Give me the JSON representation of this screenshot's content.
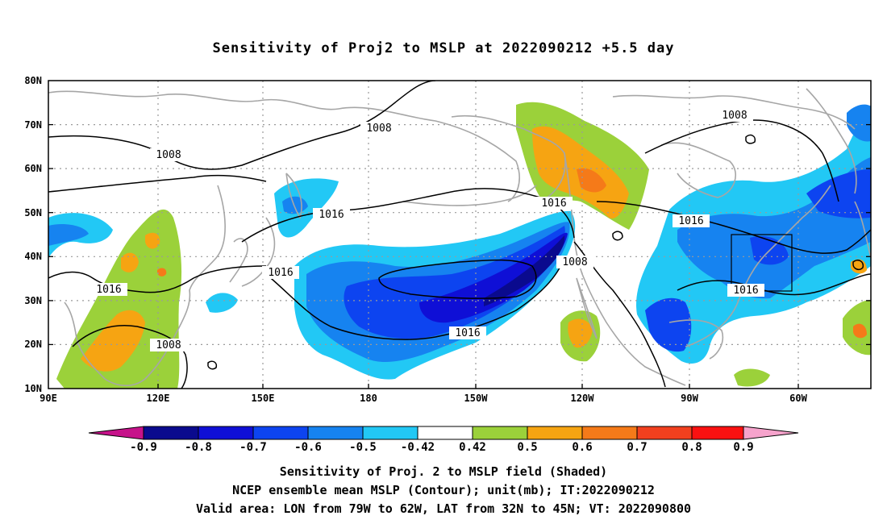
{
  "title": "Sensitivity of Proj2 to MSLP at 2022090212 +5.5 day",
  "map": {
    "lat_labels": [
      "80N",
      "70N",
      "60N",
      "50N",
      "40N",
      "30N",
      "20N",
      "10N"
    ],
    "lon_labels": [
      "90E",
      "120E",
      "150E",
      "180",
      "150W",
      "120W",
      "90W",
      "60W"
    ],
    "isobar_values": [
      "1008",
      "1008",
      "1016",
      "1016",
      "1016",
      "1016",
      "1008",
      "1016",
      "1008",
      "1008",
      "1016"
    ],
    "valid_box": {
      "lon_from": "79W",
      "lon_to": "62W",
      "lat_from": "32N",
      "lat_to": "45N"
    },
    "colors": {
      "coast": "#a6a6a6",
      "isobar": "#000000",
      "grid": "#9a9a9a"
    }
  },
  "colorbar": {
    "labels": [
      "-0.9",
      "-0.8",
      "-0.7",
      "-0.6",
      "-0.5",
      "-0.42",
      "0.42",
      "0.5",
      "0.6",
      "0.7",
      "0.8",
      "0.9"
    ],
    "bins": [
      {
        "range": "< -0.9",
        "color": "#c6128a"
      },
      {
        "range": "-0.9 to -0.8",
        "color": "#0a0a8e"
      },
      {
        "range": "-0.8 to -0.7",
        "color": "#0f0fd6"
      },
      {
        "range": "-0.7 to -0.6",
        "color": "#0d44f0"
      },
      {
        "range": "-0.6 to -0.5",
        "color": "#1683f0"
      },
      {
        "range": "-0.5 to -0.42",
        "color": "#22c8f5"
      },
      {
        "range": "-0.42 to 0.42",
        "color": "#ffffff"
      },
      {
        "range": "0.42 to 0.5",
        "color": "#9bd13a"
      },
      {
        "range": "0.5 to 0.6",
        "color": "#f6a412"
      },
      {
        "range": "0.6 to 0.7",
        "color": "#f57a19"
      },
      {
        "range": "0.7 to 0.8",
        "color": "#f2401e"
      },
      {
        "range": "0.8 to 0.9",
        "color": "#fa1111"
      },
      {
        "range": "> 0.9",
        "color": "#f6a3cc"
      }
    ]
  },
  "captions": [
    "Sensitivity of Proj. 2 to MSLP field (Shaded)",
    "NCEP ensemble mean MSLP (Contour); unit(mb); IT:2022090212",
    "Valid area: LON from 79W to 62W, LAT from 32N to 45N; VT: 2022090800"
  ]
}
